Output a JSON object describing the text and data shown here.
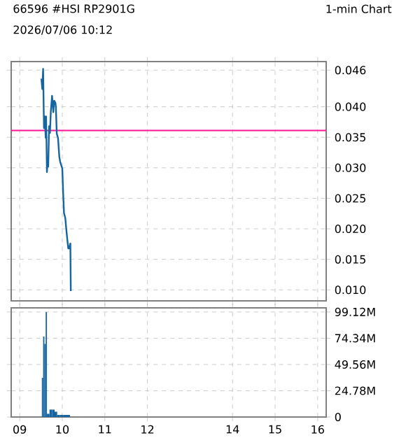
{
  "chart_data": [
    {
      "type": "line",
      "title": "66596 #HSI  RP2901G",
      "subtitle": "2026/07/06 10:12",
      "annotations": [
        "1-min Chart"
      ],
      "x": [
        9.51,
        9.53,
        9.55,
        9.57,
        9.59,
        9.61,
        9.62,
        9.64,
        9.65,
        9.67,
        9.69,
        9.71,
        9.73,
        9.76,
        9.79,
        9.81,
        9.84,
        9.85,
        9.87,
        9.9,
        9.93,
        9.95,
        9.98,
        10.0,
        10.02,
        10.04,
        10.07,
        10.1,
        10.14,
        10.16,
        10.19,
        10.2
      ],
      "series": [
        {
          "color": "#1565a0",
          "values": [
            0.0446,
            0.0429,
            0.0462,
            0.0365,
            0.0384,
            0.0349,
            0.0384,
            0.0293,
            0.0306,
            0.0302,
            0.0368,
            0.0357,
            0.0391,
            0.0418,
            0.0391,
            0.041,
            0.0406,
            0.0399,
            0.0356,
            0.0349,
            0.0318,
            0.031,
            0.0303,
            0.0299,
            0.026,
            0.0226,
            0.0218,
            0.0195,
            0.0168,
            0.0168,
            0.0176,
            0.0098
          ]
        }
      ],
      "ref_lines": [
        {
          "axis": "y",
          "value": 0.0361,
          "color": "#ff1493"
        }
      ],
      "xlim": [
        8.8,
        16.2
      ],
      "xticks": [
        9,
        10,
        11,
        12,
        14,
        15,
        16
      ],
      "ylim": [
        0.0082,
        0.0474
      ],
      "yticks": [
        {
          "value": 0.01,
          "label": "0.010"
        },
        {
          "value": 0.015,
          "label": "0.015"
        },
        {
          "value": 0.02,
          "label": "0.020"
        },
        {
          "value": 0.025,
          "label": "0.025"
        },
        {
          "value": 0.03,
          "label": "0.030"
        },
        {
          "value": 0.035,
          "label": "0.035"
        },
        {
          "value": 0.04,
          "label": "0.040"
        },
        {
          "value": 0.046,
          "label": "0.046"
        }
      ],
      "grid": true,
      "tick_labels": "y"
    },
    {
      "type": "histogram",
      "bins": [
        9.52,
        9.55,
        9.58,
        9.61,
        9.64,
        9.7,
        9.76,
        9.82,
        9.88,
        9.94,
        10.03,
        10.18
      ],
      "series": [
        {
          "color": "#1565a0",
          "values": [
            37,
            76,
            69,
            99,
            3,
            7,
            7,
            5,
            2,
            2,
            2
          ]
        }
      ],
      "xlim": [
        8.8,
        16.2
      ],
      "xticks": [
        {
          "value": 9,
          "label": "09"
        },
        10,
        11,
        12,
        14,
        15,
        16
      ],
      "ylim": [
        0,
        103
      ],
      "yticks": [
        {
          "value": 0,
          "label": "0"
        },
        {
          "value": 24.78,
          "label": "24.78M"
        },
        {
          "value": 49.56,
          "label": "49.56M"
        },
        {
          "value": 74.34,
          "label": "74.34M"
        },
        {
          "value": 99.12,
          "label": "99.12M"
        }
      ],
      "grid": true
    }
  ]
}
